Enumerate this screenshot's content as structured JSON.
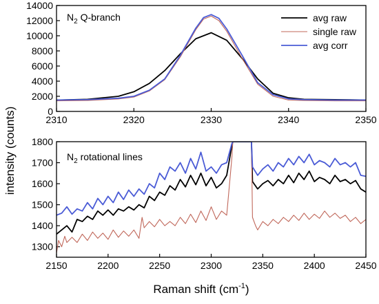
{
  "chart_data": [
    {
      "type": "line",
      "title": "N2 Q-branch",
      "title_main": "N",
      "title_sub": "2",
      "title_rest": " Q-branch",
      "xlim": [
        2310,
        2350
      ],
      "ylim": [
        0,
        14000
      ],
      "xticks": [
        2310,
        2320,
        2330,
        2340,
        2350
      ],
      "yticks": [
        0,
        2000,
        4000,
        6000,
        8000,
        10000,
        12000,
        14000
      ],
      "legend_position": "top-right",
      "series": [
        {
          "name": "avg raw",
          "color": "#000000",
          "x": [
            2310,
            2314,
            2318,
            2320,
            2322,
            2324,
            2326,
            2328,
            2330,
            2332,
            2334,
            2336,
            2338,
            2340,
            2342,
            2346,
            2350
          ],
          "y": [
            1500,
            1600,
            2000,
            2600,
            3700,
            5400,
            7600,
            9600,
            10400,
            9400,
            7000,
            4300,
            2400,
            1800,
            1600,
            1550,
            1500
          ]
        },
        {
          "name": "single raw",
          "color": "#c0675a",
          "x": [
            2310,
            2314,
            2318,
            2320,
            2322,
            2324,
            2326,
            2328,
            2329,
            2330,
            2331,
            2332,
            2334,
            2336,
            2338,
            2340,
            2342,
            2346,
            2350
          ],
          "y": [
            1400,
            1450,
            1650,
            1900,
            2700,
            4200,
            7200,
            10800,
            12200,
            12600,
            12000,
            10600,
            7000,
            3600,
            2000,
            1500,
            1450,
            1400,
            1400
          ]
        },
        {
          "name": "avg corr",
          "color": "#4a5bd6",
          "x": [
            2310,
            2314,
            2318,
            2320,
            2322,
            2324,
            2326,
            2328,
            2329,
            2330,
            2331,
            2332,
            2334,
            2336,
            2338,
            2340,
            2342,
            2346,
            2350
          ],
          "y": [
            1500,
            1550,
            1750,
            2000,
            2800,
            4300,
            7400,
            11000,
            12400,
            12800,
            12300,
            10900,
            7400,
            3800,
            2200,
            1650,
            1550,
            1500,
            1500
          ]
        }
      ]
    },
    {
      "type": "line",
      "title": "N2 rotational lines",
      "title_main": "N",
      "title_sub": "2",
      "title_rest": " rotational lines",
      "xlabel": "Raman shift (cm-1)",
      "xlabel_main": "Raman shift (cm",
      "xlabel_sup": "-1",
      "xlabel_end": ")",
      "ylabel": "intensity (counts)",
      "xlim": [
        2150,
        2450
      ],
      "ylim": [
        1250,
        1800
      ],
      "xticks": [
        2150,
        2200,
        2250,
        2300,
        2350,
        2400,
        2450
      ],
      "yticks": [
        1300,
        1400,
        1500,
        1600,
        1700,
        1800
      ],
      "series": [
        {
          "name": "avg raw",
          "color": "#000000",
          "x": [
            2150,
            2155,
            2160,
            2165,
            2170,
            2175,
            2180,
            2185,
            2190,
            2195,
            2200,
            2205,
            2210,
            2215,
            2220,
            2225,
            2230,
            2235,
            2240,
            2245,
            2250,
            2255,
            2260,
            2265,
            2270,
            2275,
            2280,
            2285,
            2290,
            2295,
            2300,
            2305,
            2310,
            2315,
            2320,
            2321,
            2339,
            2340,
            2345,
            2350,
            2355,
            2360,
            2365,
            2370,
            2375,
            2380,
            2385,
            2390,
            2395,
            2400,
            2405,
            2410,
            2415,
            2420,
            2425,
            2430,
            2435,
            2440,
            2445,
            2450
          ],
          "y": [
            1360,
            1380,
            1400,
            1370,
            1430,
            1420,
            1445,
            1430,
            1470,
            1450,
            1475,
            1450,
            1480,
            1470,
            1490,
            1475,
            1500,
            1485,
            1540,
            1520,
            1560,
            1545,
            1590,
            1570,
            1620,
            1585,
            1640,
            1595,
            1650,
            1590,
            1630,
            1580,
            1600,
            1640,
            1780,
            1800,
            1800,
            1610,
            1575,
            1600,
            1615,
            1590,
            1620,
            1600,
            1640,
            1605,
            1650,
            1620,
            1660,
            1610,
            1630,
            1620,
            1600,
            1640,
            1610,
            1620,
            1600,
            1615,
            1575,
            1560
          ]
        },
        {
          "name": "single raw",
          "color": "#c0675a",
          "x": [
            2150,
            2152,
            2155,
            2158,
            2160,
            2165,
            2170,
            2175,
            2180,
            2185,
            2190,
            2195,
            2200,
            2205,
            2210,
            2215,
            2220,
            2225,
            2230,
            2233,
            2235,
            2240,
            2245,
            2250,
            2255,
            2260,
            2265,
            2270,
            2275,
            2280,
            2285,
            2290,
            2295,
            2300,
            2305,
            2310,
            2315,
            2320,
            2321,
            2339,
            2340,
            2343,
            2345,
            2350,
            2355,
            2360,
            2365,
            2370,
            2375,
            2380,
            2385,
            2390,
            2395,
            2400,
            2405,
            2410,
            2415,
            2420,
            2425,
            2430,
            2435,
            2440,
            2445,
            2450
          ],
          "y": [
            1270,
            1330,
            1300,
            1350,
            1320,
            1345,
            1320,
            1360,
            1330,
            1370,
            1340,
            1365,
            1335,
            1380,
            1345,
            1375,
            1350,
            1380,
            1340,
            1440,
            1390,
            1420,
            1395,
            1430,
            1400,
            1420,
            1400,
            1440,
            1410,
            1455,
            1415,
            1470,
            1425,
            1490,
            1430,
            1470,
            1450,
            1720,
            1800,
            1800,
            1440,
            1400,
            1380,
            1420,
            1400,
            1430,
            1410,
            1440,
            1420,
            1450,
            1425,
            1460,
            1430,
            1455,
            1435,
            1470,
            1440,
            1460,
            1435,
            1450,
            1420,
            1440,
            1410,
            1430
          ]
        },
        {
          "name": "avg corr",
          "color": "#4a5bd6",
          "x": [
            2150,
            2155,
            2160,
            2165,
            2170,
            2175,
            2180,
            2185,
            2190,
            2195,
            2200,
            2205,
            2210,
            2215,
            2220,
            2225,
            2230,
            2235,
            2240,
            2245,
            2250,
            2255,
            2260,
            2265,
            2270,
            2275,
            2280,
            2285,
            2290,
            2295,
            2300,
            2305,
            2310,
            2315,
            2320,
            2321,
            2339,
            2340,
            2345,
            2350,
            2355,
            2360,
            2365,
            2370,
            2375,
            2380,
            2385,
            2390,
            2395,
            2400,
            2405,
            2410,
            2415,
            2420,
            2425,
            2430,
            2435,
            2440,
            2445,
            2450
          ],
          "y": [
            1450,
            1460,
            1490,
            1455,
            1480,
            1470,
            1510,
            1480,
            1530,
            1500,
            1540,
            1510,
            1560,
            1525,
            1570,
            1540,
            1575,
            1550,
            1600,
            1580,
            1650,
            1620,
            1680,
            1660,
            1700,
            1650,
            1720,
            1670,
            1750,
            1660,
            1680,
            1650,
            1690,
            1700,
            1790,
            1800,
            1800,
            1680,
            1640,
            1670,
            1690,
            1660,
            1700,
            1680,
            1720,
            1690,
            1730,
            1700,
            1740,
            1690,
            1710,
            1700,
            1680,
            1720,
            1690,
            1700,
            1680,
            1700,
            1640,
            1635
          ]
        }
      ]
    }
  ]
}
